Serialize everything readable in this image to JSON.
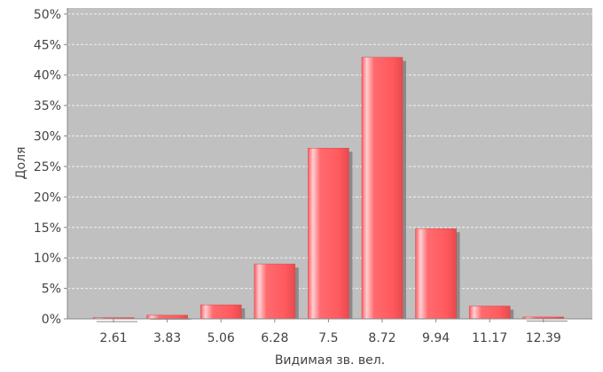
{
  "chart_data": {
    "type": "bar",
    "categories": [
      "2.61",
      "3.83",
      "5.06",
      "6.28",
      "7.5",
      "8.72",
      "9.94",
      "11.17",
      "12.39"
    ],
    "values": [
      0.2,
      0.6,
      2.3,
      9.0,
      28.0,
      42.9,
      14.8,
      2.1,
      0.3
    ],
    "xlabel": "Видимая зв. вел.",
    "ylabel": "Доля",
    "ylim": [
      0,
      51
    ],
    "yticks": [
      0,
      5,
      10,
      15,
      20,
      25,
      30,
      35,
      40,
      45,
      50
    ],
    "ytick_suffix": "%",
    "grid": true,
    "colors": {
      "plot_background": "#c0c0c0",
      "bar": "#ff5a5e",
      "bar_highlight": "#ffc8ca",
      "bar_shadow": "#8a8a8a",
      "grid": "#f2f2f2"
    }
  }
}
